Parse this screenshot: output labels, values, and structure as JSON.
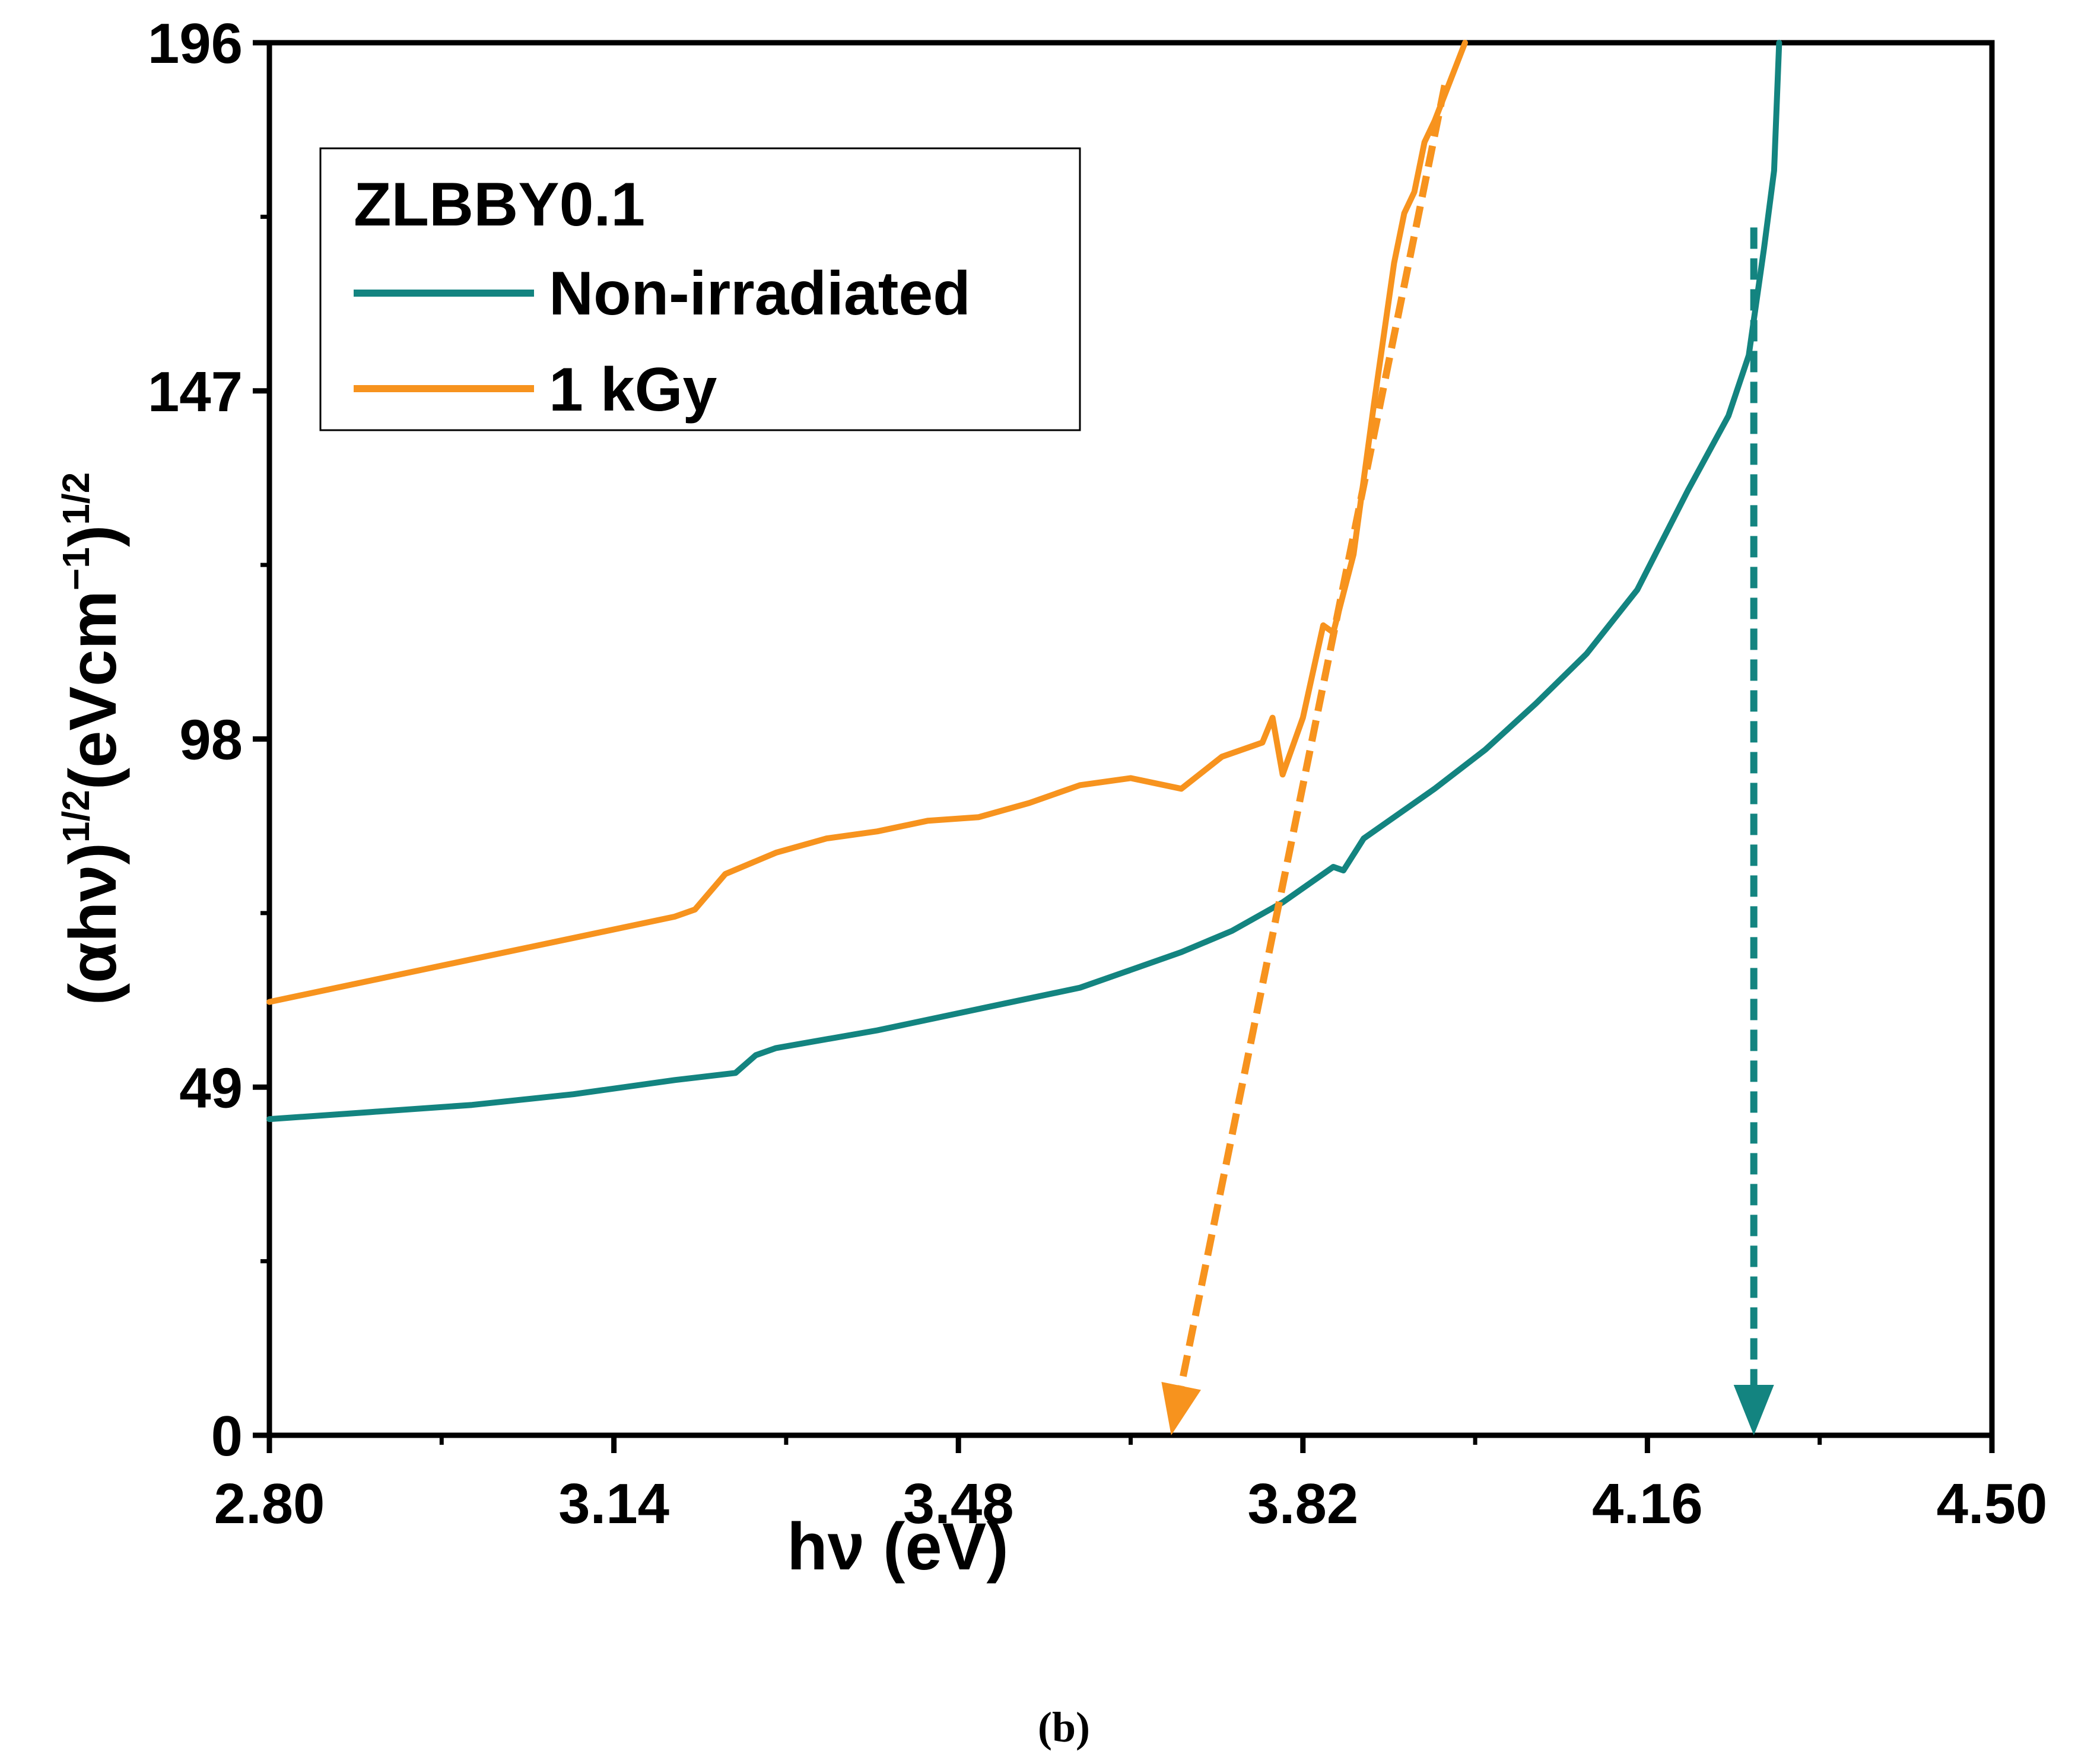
{
  "chart_data": {
    "type": "line",
    "title": "",
    "xlabel": "hν (eV)",
    "ylabel": {
      "base": "(αhν)",
      "sup1": "1/2",
      "mid": "(eVcm",
      "sup2": "−1",
      "close": ")",
      "sup3": "1/2"
    },
    "xlim": [
      2.8,
      4.5
    ],
    "ylim": [
      0,
      196
    ],
    "xticks": [
      2.8,
      3.14,
      3.48,
      3.82,
      4.16,
      4.5
    ],
    "xtick_labels": [
      "2.80",
      "3.14",
      "3.48",
      "3.82",
      "4.16",
      "4.50"
    ],
    "yticks": [
      0,
      49,
      98,
      147,
      196
    ],
    "ytick_labels": [
      "0",
      "49",
      "98",
      "147",
      "196"
    ],
    "legend": {
      "position": "top-left",
      "title": "ZLBBY0.1"
    },
    "series": [
      {
        "name": "Non-irradiated",
        "color": "#138480",
        "x": [
          2.8,
          2.9,
          3.0,
          3.1,
          3.2,
          3.26,
          3.28,
          3.3,
          3.4,
          3.5,
          3.6,
          3.64,
          3.66,
          3.7,
          3.75,
          3.8,
          3.85,
          3.86,
          3.88,
          3.9,
          3.95,
          4.0,
          4.05,
          4.1,
          4.15,
          4.2,
          4.24,
          4.26,
          4.275,
          4.285,
          4.29
        ],
        "y": [
          44.5,
          45.5,
          46.5,
          48,
          50,
          51,
          53.5,
          54.5,
          57,
          60,
          63,
          65,
          66,
          68,
          71,
          75,
          80,
          79.5,
          84,
          86,
          91,
          96.5,
          103,
          110,
          119,
          133,
          143.5,
          152,
          167,
          178,
          196
        ]
      },
      {
        "name": "1 kGy",
        "color": "#f7931e",
        "x": [
          2.8,
          2.9,
          3.0,
          3.1,
          3.2,
          3.22,
          3.25,
          3.3,
          3.35,
          3.4,
          3.45,
          3.5,
          3.55,
          3.6,
          3.65,
          3.7,
          3.74,
          3.77,
          3.78,
          3.79,
          3.8,
          3.82,
          3.84,
          3.85,
          3.87,
          3.89,
          3.91,
          3.92,
          3.93,
          3.94,
          3.95,
          3.98
        ],
        "y": [
          61,
          64,
          67,
          70,
          73,
          74,
          79,
          82,
          84,
          85,
          86.5,
          87,
          89,
          91.5,
          92.5,
          91,
          95.5,
          97,
          97.5,
          101,
          93,
          101,
          114,
          113,
          124,
          145,
          165,
          172,
          175,
          182,
          185,
          196
        ]
      }
    ],
    "extrapolations": [
      {
        "series": "1 kGy",
        "color": "#f7931e",
        "x": [
          3.96,
          3.69
        ],
        "y": [
          190,
          0
        ],
        "style": "dashed-arrow",
        "intercept": 3.69
      },
      {
        "series": "Non-irradiated",
        "color": "#138480",
        "x": [
          4.265,
          4.265
        ],
        "y": [
          170,
          0
        ],
        "style": "dashed-arrow",
        "intercept": 4.265
      }
    ],
    "caption": "(b)"
  }
}
